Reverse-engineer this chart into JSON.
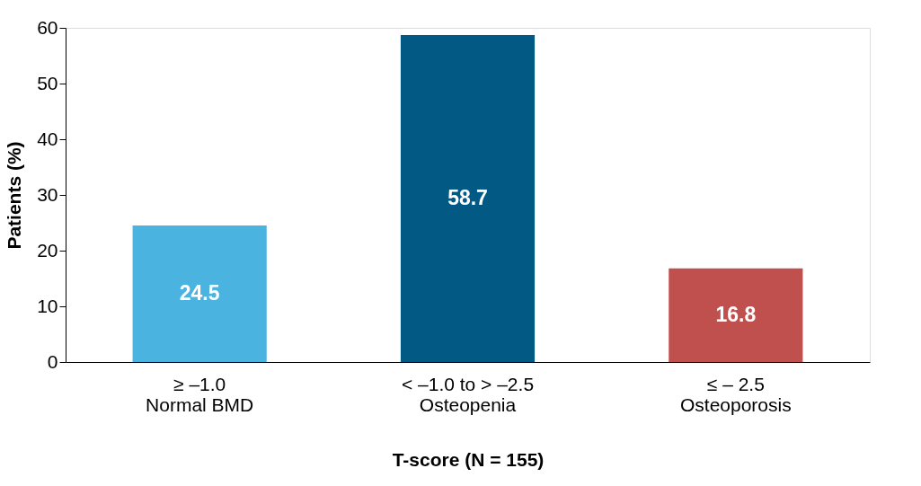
{
  "chart_data": {
    "type": "bar",
    "xlabel": "T-score (N = 155)",
    "ylabel": "Patients (%)",
    "categories": [
      "≥ –1.0\nNormal BMD",
      "< –1.0 to > –2.5\nOsteopenia",
      "≤ – 2.5\nOsteoporosis"
    ],
    "values": [
      24.5,
      58.7,
      16.8
    ],
    "colors": [
      "#4ab3e0",
      "#025a84",
      "#c0504d"
    ],
    "ylim": [
      0,
      60
    ],
    "yticks": [
      0,
      10,
      20,
      30,
      40,
      50,
      60
    ],
    "grid": false,
    "data_labels": true
  }
}
